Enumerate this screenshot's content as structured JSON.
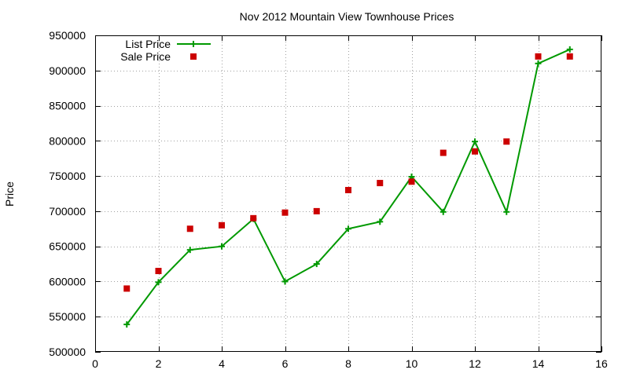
{
  "chart_data": {
    "type": "line",
    "title": "Nov 2012 Mountain View Townhouse Prices",
    "xlabel": "",
    "ylabel": "Price",
    "xlim": [
      0,
      16
    ],
    "ylim": [
      500000,
      950000
    ],
    "xticks": [
      0,
      2,
      4,
      6,
      8,
      10,
      12,
      14,
      16
    ],
    "yticks": [
      500000,
      550000,
      600000,
      650000,
      700000,
      750000,
      800000,
      850000,
      900000,
      950000
    ],
    "grid": true,
    "legend_position": "top-left",
    "series": [
      {
        "name": "List Price",
        "style": "line-with-plus-markers",
        "color": "#009900",
        "x": [
          1,
          2,
          3,
          4,
          5,
          6,
          7,
          8,
          9,
          10,
          11,
          12,
          13,
          14,
          15
        ],
        "values": [
          539000,
          599000,
          645000,
          649950,
          689000,
          600000,
          625000,
          675000,
          685000,
          749000,
          699000,
          799000,
          699000,
          910000,
          930000
        ]
      },
      {
        "name": "Sale Price",
        "style": "square-markers",
        "color": "#cc0000",
        "x": [
          1,
          2,
          3,
          4,
          5,
          6,
          7,
          8,
          9,
          10,
          11,
          12,
          13,
          14,
          15
        ],
        "values": [
          590000,
          615000,
          675000,
          680000,
          690000,
          698000,
          700000,
          730000,
          740000,
          742000,
          783000,
          785000,
          799000,
          920000,
          920000
        ]
      }
    ]
  }
}
